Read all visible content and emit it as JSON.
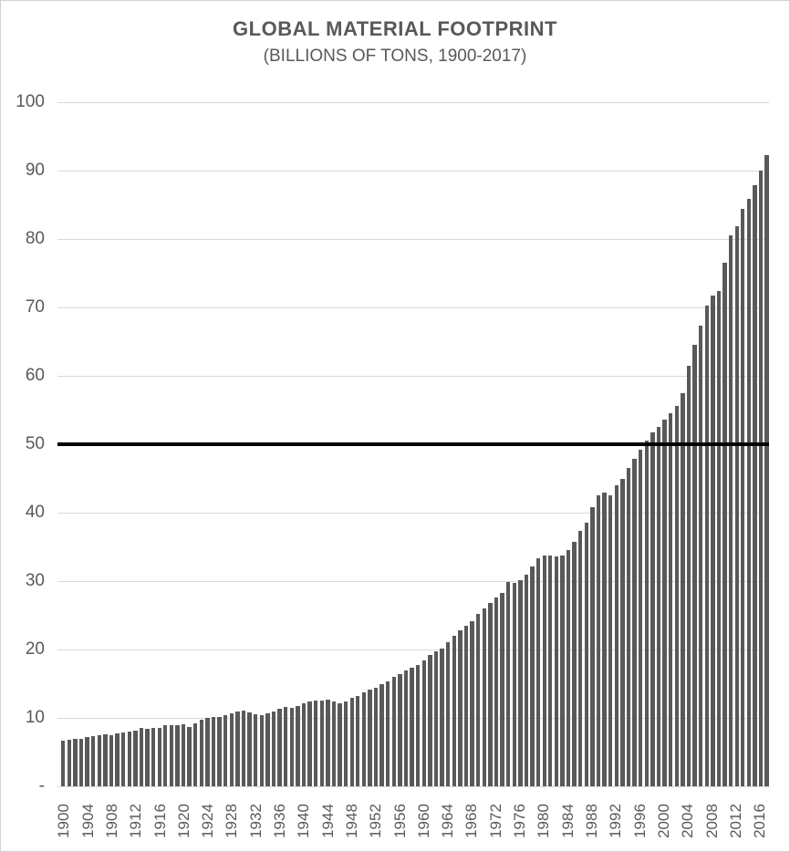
{
  "title": "GLOBAL MATERIAL FOOTPRINT",
  "subtitle": "(BILLIONS OF TONS, 1900-2017)",
  "colors": {
    "bar": "#595959",
    "gridline": "#d9d9d9",
    "reference_line": "#000000",
    "text": "#595959"
  },
  "chart_data": {
    "type": "bar",
    "title": "GLOBAL MATERIAL FOOTPRINT",
    "subtitle": "(BILLIONS OF TONS, 1900-2017)",
    "xlabel": "",
    "ylabel": "",
    "year_start": 1900,
    "year_end": 2017,
    "ylim": [
      0,
      100
    ],
    "grid": true,
    "y_ticks": [
      0,
      10,
      20,
      30,
      40,
      50,
      60,
      70,
      80,
      90,
      100
    ],
    "y_tick_labels": [
      "-",
      "10",
      "20",
      "30",
      "40",
      "50",
      "60",
      "70",
      "80",
      "90",
      "100"
    ],
    "x_tick_years": [
      1900,
      1904,
      1908,
      1912,
      1916,
      1920,
      1924,
      1928,
      1932,
      1936,
      1940,
      1944,
      1948,
      1952,
      1956,
      1960,
      1964,
      1968,
      1972,
      1976,
      1980,
      1984,
      1988,
      1992,
      1996,
      2000,
      2004,
      2008,
      2012,
      2016
    ],
    "reference_line": {
      "value": 50,
      "color": "#000000"
    },
    "series": [
      {
        "name": "Global material footprint (billions of tons)",
        "values": [
          6.7,
          6.8,
          6.9,
          7.0,
          7.2,
          7.3,
          7.5,
          7.6,
          7.5,
          7.7,
          7.9,
          8.0,
          8.2,
          8.5,
          8.4,
          8.5,
          8.6,
          8.9,
          9.0,
          8.9,
          9.1,
          8.7,
          9.2,
          9.7,
          10.0,
          10.1,
          10.2,
          10.4,
          10.7,
          10.9,
          11.1,
          10.8,
          10.5,
          10.4,
          10.7,
          11.0,
          11.3,
          11.6,
          11.5,
          11.8,
          12.1,
          12.4,
          12.5,
          12.6,
          12.7,
          12.4,
          12.2,
          12.4,
          12.9,
          13.2,
          13.7,
          14.1,
          14.4,
          15.0,
          15.4,
          16.0,
          16.4,
          16.9,
          17.3,
          17.8,
          18.4,
          19.2,
          19.7,
          20.2,
          21.1,
          22.0,
          22.8,
          23.5,
          24.2,
          25.2,
          26.0,
          26.8,
          27.6,
          28.3,
          29.9,
          29.8,
          30.1,
          31.0,
          32.1,
          33.4,
          33.8,
          33.7,
          33.6,
          33.8,
          34.5,
          35.8,
          37.3,
          38.5,
          40.8,
          42.5,
          42.9,
          42.6,
          44.0,
          44.9,
          46.5,
          47.9,
          49.2,
          50.6,
          51.7,
          52.5,
          53.6,
          54.6,
          55.6,
          57.5,
          61.5,
          64.5,
          67.3,
          70.3,
          71.8,
          72.4,
          76.6,
          80.5,
          81.9,
          84.4,
          85.9,
          87.9,
          90.0,
          92.3
        ]
      }
    ]
  }
}
